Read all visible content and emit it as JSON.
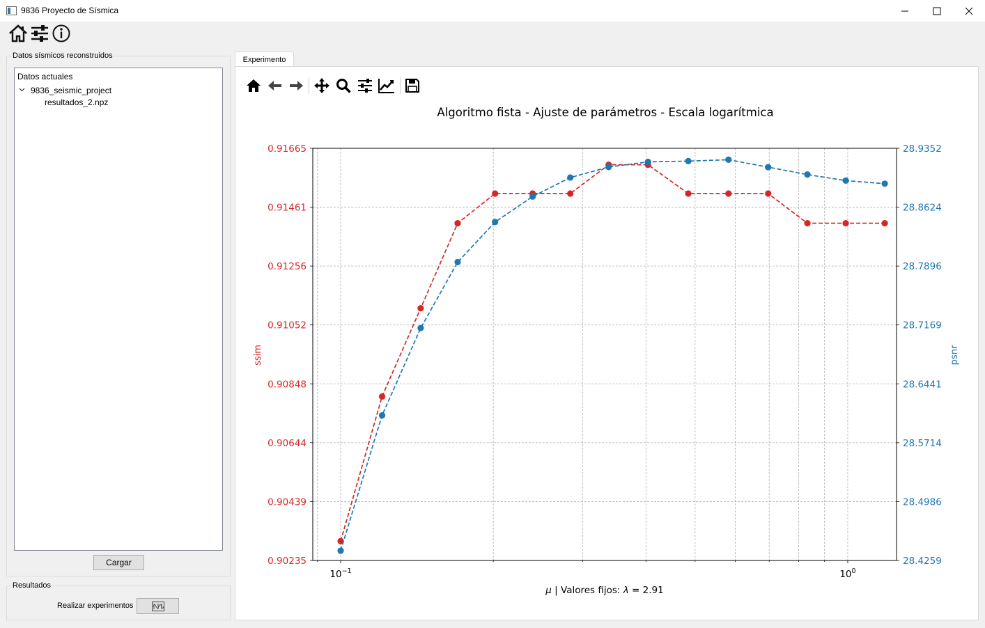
{
  "window": {
    "title": "9836 Proyecto de Sísmica"
  },
  "left": {
    "datos_group_title": "Datos sísmicos reconstruidos",
    "tree": {
      "header": "Datos actuales",
      "project": "9836_seismic_project",
      "file": "resultados_2.npz"
    },
    "cargar_label": "Cargar",
    "resultados_group_title": "Resultados",
    "realizar_label": "Realizar experimentos"
  },
  "tabs": [
    "Experimento"
  ],
  "chart_data": {
    "type": "line",
    "title": "Algoritmo fista - Ajuste de parámetros - Escala logarítmica",
    "xlabel": "μ | Valores fijos: λ = 2.91",
    "xscale": "log",
    "x": [
      0.1,
      0.1207,
      0.1438,
      0.1701,
      0.2016,
      0.2391,
      0.2837,
      0.3377,
      0.4037,
      0.4848,
      0.5818,
      0.6967,
      0.8325,
      0.9909,
      1.183
    ],
    "series": [
      {
        "name": "ssim",
        "color": "#d62728",
        "values": [
          0.90302,
          0.90804,
          0.9111,
          0.91405,
          0.91508,
          0.91508,
          0.91508,
          0.91608,
          0.91608,
          0.91508,
          0.91508,
          0.91508,
          0.91405,
          0.91405,
          0.91405
        ]
      },
      {
        "name": "psnr",
        "color": "#1f77b4",
        "values": [
          28.438,
          28.6052,
          28.7131,
          28.7946,
          28.8441,
          28.8756,
          28.8991,
          28.9121,
          28.9184,
          28.9194,
          28.9211,
          28.9119,
          28.9028,
          28.8953,
          28.8915
        ]
      }
    ],
    "ylabel": "ssim",
    "y2label": "psnr",
    "ylim": [
      0.90235,
      0.91665
    ],
    "y2lim": [
      28.4259,
      28.9352
    ],
    "yticks": [
      "0.90235",
      "0.90439",
      "0.90644",
      "0.90848",
      "0.91052",
      "0.91256",
      "0.91461",
      "0.91665"
    ],
    "y2ticks": [
      "28.4259",
      "28.4986",
      "28.5714",
      "28.6441",
      "28.7169",
      "28.7896",
      "28.8624",
      "28.9352"
    ],
    "xticks": [
      {
        "value": 0.1,
        "base": "10",
        "exp": "−1"
      },
      {
        "value": 1.0,
        "base": "10",
        "exp": "0"
      }
    ],
    "grid": true
  },
  "icons": {
    "toolbar": [
      "home-icon",
      "sliders-icon",
      "info-icon"
    ],
    "plot_toolbar": [
      "home-icon",
      "back-arrow-icon",
      "forward-arrow-icon",
      "pan-icon",
      "zoom-icon",
      "configure-subplots-icon",
      "edit-curve-icon",
      "save-icon"
    ]
  }
}
